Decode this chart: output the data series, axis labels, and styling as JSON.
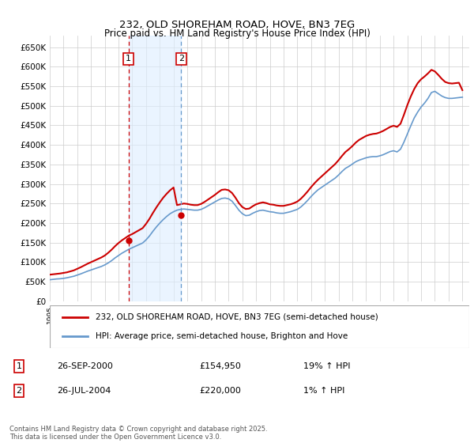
{
  "title": "232, OLD SHOREHAM ROAD, HOVE, BN3 7EG",
  "subtitle": "Price paid vs. HM Land Registry's House Price Index (HPI)",
  "ylabel_ticks": [
    "£0",
    "£50K",
    "£100K",
    "£150K",
    "£200K",
    "£250K",
    "£300K",
    "£350K",
    "£400K",
    "£450K",
    "£500K",
    "£550K",
    "£600K",
    "£650K"
  ],
  "ylim": [
    0,
    680000
  ],
  "yticks": [
    0,
    50000,
    100000,
    150000,
    200000,
    250000,
    300000,
    350000,
    400000,
    450000,
    500000,
    550000,
    600000,
    650000
  ],
  "xlim_start": 1995.0,
  "xlim_end": 2025.5,
  "background_color": "#ffffff",
  "grid_color": "#cccccc",
  "hpi_color": "#6699cc",
  "property_color": "#cc0000",
  "transaction1": {
    "year": 2000.73,
    "price": 154950,
    "label": "1",
    "date": "26-SEP-2000",
    "pct": "19%"
  },
  "transaction2": {
    "year": 2004.56,
    "price": 220000,
    "label": "2",
    "date": "26-JUL-2004",
    "pct": "1%"
  },
  "legend_property": "232, OLD SHOREHAM ROAD, HOVE, BN3 7EG (semi-detached house)",
  "legend_hpi": "HPI: Average price, semi-detached house, Brighton and Hove",
  "footnote": "Contains HM Land Registry data © Crown copyright and database right 2025.\nThis data is licensed under the Open Government Licence v3.0.",
  "table_rows": [
    {
      "num": "1",
      "date": "26-SEP-2000",
      "price": "£154,950",
      "pct": "19% ↑ HPI"
    },
    {
      "num": "2",
      "date": "26-JUL-2004",
      "price": "£220,000",
      "pct": "1% ↑ HPI"
    }
  ],
  "hpi_data_x": [
    1995.0,
    1995.25,
    1995.5,
    1995.75,
    1996.0,
    1996.25,
    1996.5,
    1996.75,
    1997.0,
    1997.25,
    1997.5,
    1997.75,
    1998.0,
    1998.25,
    1998.5,
    1998.75,
    1999.0,
    1999.25,
    1999.5,
    1999.75,
    2000.0,
    2000.25,
    2000.5,
    2000.75,
    2001.0,
    2001.25,
    2001.5,
    2001.75,
    2002.0,
    2002.25,
    2002.5,
    2002.75,
    2003.0,
    2003.25,
    2003.5,
    2003.75,
    2004.0,
    2004.25,
    2004.5,
    2004.75,
    2005.0,
    2005.25,
    2005.5,
    2005.75,
    2006.0,
    2006.25,
    2006.5,
    2006.75,
    2007.0,
    2007.25,
    2007.5,
    2007.75,
    2008.0,
    2008.25,
    2008.5,
    2008.75,
    2009.0,
    2009.25,
    2009.5,
    2009.75,
    2010.0,
    2010.25,
    2010.5,
    2010.75,
    2011.0,
    2011.25,
    2011.5,
    2011.75,
    2012.0,
    2012.25,
    2012.5,
    2012.75,
    2013.0,
    2013.25,
    2013.5,
    2013.75,
    2014.0,
    2014.25,
    2014.5,
    2014.75,
    2015.0,
    2015.25,
    2015.5,
    2015.75,
    2016.0,
    2016.25,
    2016.5,
    2016.75,
    2017.0,
    2017.25,
    2017.5,
    2017.75,
    2018.0,
    2018.25,
    2018.5,
    2018.75,
    2019.0,
    2019.25,
    2019.5,
    2019.75,
    2020.0,
    2020.25,
    2020.5,
    2020.75,
    2021.0,
    2021.25,
    2021.5,
    2021.75,
    2022.0,
    2022.25,
    2022.5,
    2022.75,
    2023.0,
    2023.25,
    2023.5,
    2023.75,
    2024.0,
    2024.25,
    2024.5,
    2024.75,
    2025.0
  ],
  "hpi_data_y": [
    55000,
    56000,
    57000,
    57500,
    58500,
    60000,
    62000,
    64000,
    67000,
    70000,
    73500,
    77000,
    80000,
    83000,
    86000,
    89000,
    93000,
    98000,
    104000,
    111000,
    117000,
    123000,
    128000,
    133000,
    137000,
    141000,
    145000,
    149000,
    157000,
    167000,
    179000,
    190000,
    200000,
    209000,
    217000,
    224000,
    229000,
    233000,
    235000,
    236000,
    235000,
    234000,
    233000,
    233000,
    235000,
    239000,
    244000,
    249000,
    254000,
    259000,
    263000,
    264000,
    262000,
    256000,
    245000,
    233000,
    224000,
    219000,
    220000,
    225000,
    229000,
    232000,
    233000,
    231000,
    229000,
    228000,
    226000,
    225000,
    225000,
    227000,
    229000,
    232000,
    235000,
    241000,
    249000,
    258000,
    268000,
    277000,
    285000,
    291000,
    297000,
    303000,
    309000,
    315000,
    323000,
    332000,
    340000,
    345000,
    351000,
    357000,
    361000,
    364000,
    367000,
    369000,
    370000,
    370000,
    372000,
    375000,
    379000,
    383000,
    385000,
    382000,
    389000,
    407000,
    428000,
    449000,
    469000,
    484000,
    497000,
    507000,
    519000,
    534000,
    537000,
    531000,
    525000,
    521000,
    519000,
    519000,
    520000,
    521000,
    522000
  ],
  "prop_data_x": [
    1995.0,
    1995.25,
    1995.5,
    1995.75,
    1996.0,
    1996.25,
    1996.5,
    1996.75,
    1997.0,
    1997.25,
    1997.5,
    1997.75,
    1998.0,
    1998.25,
    1998.5,
    1998.75,
    1999.0,
    1999.25,
    1999.5,
    1999.75,
    2000.0,
    2000.25,
    2000.5,
    2000.75,
    2001.0,
    2001.25,
    2001.5,
    2001.75,
    2002.0,
    2002.25,
    2002.5,
    2002.75,
    2003.0,
    2003.25,
    2003.5,
    2003.75,
    2004.0,
    2004.25,
    2004.5,
    2004.75,
    2005.0,
    2005.25,
    2005.5,
    2005.75,
    2006.0,
    2006.25,
    2006.5,
    2006.75,
    2007.0,
    2007.25,
    2007.5,
    2007.75,
    2008.0,
    2008.25,
    2008.5,
    2008.75,
    2009.0,
    2009.25,
    2009.5,
    2009.75,
    2010.0,
    2010.25,
    2010.5,
    2010.75,
    2011.0,
    2011.25,
    2011.5,
    2011.75,
    2012.0,
    2012.25,
    2012.5,
    2012.75,
    2013.0,
    2013.25,
    2013.5,
    2013.75,
    2014.0,
    2014.25,
    2014.5,
    2014.75,
    2015.0,
    2015.25,
    2015.5,
    2015.75,
    2016.0,
    2016.25,
    2016.5,
    2016.75,
    2017.0,
    2017.25,
    2017.5,
    2017.75,
    2018.0,
    2018.25,
    2018.5,
    2018.75,
    2019.0,
    2019.25,
    2019.5,
    2019.75,
    2020.0,
    2020.25,
    2020.5,
    2020.75,
    2021.0,
    2021.25,
    2021.5,
    2021.75,
    2022.0,
    2022.25,
    2022.5,
    2022.75,
    2023.0,
    2023.25,
    2023.5,
    2023.75,
    2024.0,
    2024.25,
    2024.5,
    2024.75,
    2025.0
  ],
  "prop_data_y": [
    68000,
    69000,
    70000,
    71000,
    72500,
    74000,
    76500,
    79000,
    83000,
    87000,
    91500,
    96000,
    100000,
    104000,
    108000,
    112000,
    117000,
    124000,
    132000,
    141000,
    149000,
    156000,
    162000,
    168000,
    172000,
    177000,
    182000,
    187000,
    198000,
    211000,
    226000,
    240000,
    253000,
    265000,
    275000,
    284000,
    291000,
    246000,
    248000,
    250000,
    249000,
    247000,
    246000,
    246000,
    249000,
    254000,
    260000,
    266000,
    272000,
    279000,
    285000,
    286000,
    284000,
    277000,
    265000,
    251000,
    241000,
    236000,
    237000,
    243000,
    248000,
    251000,
    253000,
    251000,
    248000,
    247000,
    245000,
    244000,
    244000,
    246000,
    248000,
    251000,
    255000,
    262000,
    271000,
    281000,
    292000,
    302000,
    311000,
    319000,
    327000,
    335000,
    343000,
    351000,
    361000,
    372000,
    382000,
    389000,
    397000,
    406000,
    413000,
    418000,
    423000,
    426000,
    428000,
    429000,
    432000,
    436000,
    441000,
    446000,
    449000,
    446000,
    454000,
    477000,
    502000,
    524000,
    543000,
    558000,
    568000,
    575000,
    583000,
    592000,
    588000,
    579000,
    569000,
    561000,
    558000,
    557000,
    558000,
    559000,
    540000
  ]
}
